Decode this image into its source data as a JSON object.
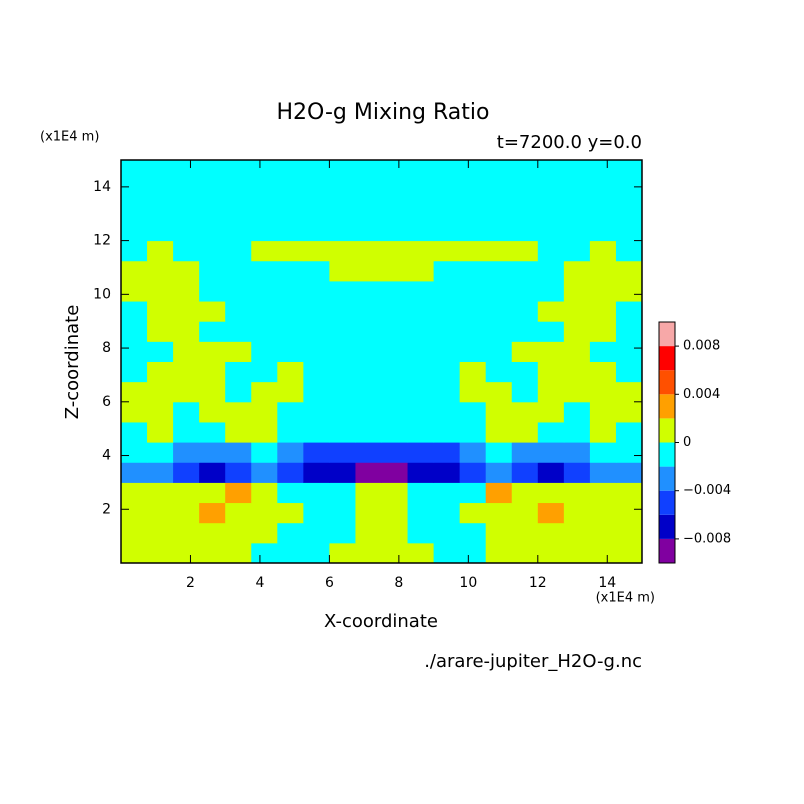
{
  "chart_data": {
    "type": "contour",
    "title": "H2O-g Mixing Ratio",
    "subtitle": "t=7200.0 y=0.0",
    "x_label": "X-coordinate",
    "y_label": "Z-coordinate",
    "x_unit": "(x1E4 m)",
    "y_unit": "(x1E4 m)",
    "footer": "./arare-jupiter_H2O-g.nc",
    "xlim": [
      0,
      15
    ],
    "ylim": [
      0,
      15
    ],
    "xticks": [
      2,
      4,
      6,
      8,
      10,
      12,
      14
    ],
    "yticks": [
      2,
      4,
      6,
      8,
      10,
      12,
      14
    ],
    "levels": [
      -0.01,
      -0.008,
      -0.006,
      -0.004,
      -0.002,
      0,
      0.002,
      0.004,
      0.006,
      0.008,
      0.01
    ],
    "colors": [
      "#8000a0",
      "#0000c8",
      "#1040ff",
      "#2090ff",
      "#00ffff",
      "#d0ff00",
      "#ffa000",
      "#ff5000",
      "#ff0000",
      "#f7a8a8"
    ],
    "colorbar_ticks": [
      {
        "value": -0.008,
        "label": "−0.008"
      },
      {
        "value": -0.004,
        "label": "−0.004"
      },
      0,
      0.004,
      0.008
    ],
    "x": [
      0.375,
      1.125,
      1.875,
      2.625,
      3.375,
      4.125,
      4.875,
      5.625,
      6.375,
      7.125,
      7.875,
      8.625,
      9.375,
      10.125,
      10.875,
      11.625,
      12.375,
      13.125,
      13.875,
      14.625
    ],
    "y": [
      0.375,
      1.125,
      1.875,
      2.625,
      3.375,
      4.125,
      4.875,
      5.625,
      6.375,
      7.125,
      7.875,
      8.625,
      9.375,
      10.125,
      10.875,
      11.625,
      12.375,
      13.125,
      13.875,
      14.625
    ],
    "z": [
      [
        0.001,
        0.001,
        0.001,
        0.001,
        0.001,
        -0.001,
        -0.001,
        -0.001,
        0.001,
        0.001,
        0.001,
        0.001,
        -0.001,
        -0.001,
        0.001,
        0.001,
        0.001,
        0.001,
        0.001,
        0.001
      ],
      [
        0.001,
        0.001,
        0.001,
        0.001,
        0.001,
        0.001,
        -0.001,
        -0.001,
        -0.001,
        0.001,
        0.001,
        -0.001,
        -0.001,
        -0.001,
        0.001,
        0.001,
        0.001,
        0.001,
        0.001,
        0.001
      ],
      [
        0.001,
        0.001,
        0.001,
        0.003,
        0.001,
        0.001,
        0.001,
        -0.001,
        -0.001,
        0.001,
        0.001,
        -0.001,
        -0.001,
        0.001,
        0.001,
        0.001,
        0.003,
        0.001,
        0.001,
        0.001
      ],
      [
        0.001,
        0.001,
        0.001,
        0.001,
        0.003,
        0.001,
        -0.001,
        -0.001,
        -0.001,
        0.001,
        0.001,
        -0.001,
        -0.001,
        -0.001,
        0.003,
        0.001,
        0.001,
        0.001,
        0.001,
        0.001
      ],
      [
        -0.003,
        -0.003,
        -0.005,
        -0.007,
        -0.005,
        -0.003,
        -0.005,
        -0.007,
        -0.007,
        -0.009,
        -0.009,
        -0.007,
        -0.007,
        -0.005,
        -0.003,
        -0.005,
        -0.007,
        -0.005,
        -0.003,
        -0.003
      ],
      [
        -0.001,
        -0.001,
        -0.003,
        -0.003,
        -0.003,
        -0.001,
        -0.003,
        -0.005,
        -0.005,
        -0.005,
        -0.005,
        -0.005,
        -0.005,
        -0.003,
        -0.001,
        -0.003,
        -0.003,
        -0.003,
        -0.001,
        -0.001
      ],
      [
        -0.001,
        0.001,
        -0.001,
        -0.001,
        0.001,
        0.001,
        -0.001,
        -0.001,
        -0.001,
        -0.001,
        -0.001,
        -0.001,
        -0.001,
        -0.001,
        0.001,
        0.001,
        -0.001,
        -0.001,
        0.001,
        -0.001
      ],
      [
        0.001,
        0.001,
        -0.001,
        0.001,
        0.001,
        0.001,
        -0.001,
        -0.001,
        -0.001,
        -0.001,
        -0.001,
        -0.001,
        -0.001,
        -0.001,
        0.001,
        0.001,
        0.001,
        -0.001,
        0.001,
        0.001
      ],
      [
        0.001,
        0.001,
        0.001,
        0.001,
        -0.001,
        0.001,
        0.001,
        -0.001,
        -0.001,
        -0.001,
        -0.001,
        -0.001,
        -0.001,
        0.001,
        0.001,
        -0.001,
        0.001,
        0.001,
        0.001,
        0.001
      ],
      [
        -0.001,
        0.001,
        0.001,
        0.001,
        -0.001,
        -0.001,
        0.001,
        -0.001,
        -0.001,
        -0.001,
        -0.001,
        -0.001,
        -0.001,
        0.001,
        -0.001,
        -0.001,
        0.001,
        0.001,
        0.001,
        -0.001
      ],
      [
        -0.001,
        -0.001,
        0.001,
        0.001,
        0.001,
        -0.001,
        -0.001,
        -0.001,
        -0.001,
        -0.001,
        -0.001,
        -0.001,
        -0.001,
        -0.001,
        -0.001,
        0.001,
        0.001,
        0.001,
        -0.001,
        -0.001
      ],
      [
        -0.001,
        0.001,
        0.001,
        -0.001,
        -0.001,
        -0.001,
        -0.001,
        -0.001,
        -0.001,
        -0.001,
        -0.001,
        -0.001,
        -0.001,
        -0.001,
        -0.001,
        -0.001,
        -0.001,
        0.001,
        0.001,
        -0.001
      ],
      [
        -0.001,
        0.001,
        0.001,
        0.001,
        -0.001,
        -0.001,
        -0.001,
        -0.001,
        -0.001,
        -0.001,
        -0.001,
        -0.001,
        -0.001,
        -0.001,
        -0.001,
        -0.001,
        0.001,
        0.001,
        0.001,
        -0.001
      ],
      [
        0.001,
        0.001,
        0.001,
        -0.001,
        -0.001,
        -0.001,
        -0.001,
        -0.001,
        -0.001,
        -0.001,
        -0.001,
        -0.001,
        -0.001,
        -0.001,
        -0.001,
        -0.001,
        -0.001,
        0.001,
        0.001,
        0.001
      ],
      [
        0.001,
        0.001,
        0.001,
        -0.001,
        -0.001,
        -0.001,
        -0.001,
        -0.001,
        0.001,
        0.001,
        0.001,
        0.001,
        -0.001,
        -0.001,
        -0.001,
        -0.001,
        -0.001,
        0.001,
        0.001,
        0.001
      ],
      [
        -0.001,
        0.001,
        -0.001,
        -0.001,
        -0.001,
        0.001,
        0.001,
        0.001,
        0.001,
        0.001,
        0.001,
        0.001,
        0.001,
        0.001,
        0.001,
        0.001,
        -0.001,
        -0.001,
        0.001,
        -0.001
      ],
      [
        -0.001,
        -0.001,
        -0.001,
        -0.001,
        -0.001,
        -0.001,
        -0.001,
        -0.001,
        -0.001,
        -0.001,
        -0.001,
        -0.001,
        -0.001,
        -0.001,
        -0.001,
        -0.001,
        -0.001,
        -0.001,
        -0.001,
        -0.001
      ],
      [
        -0.001,
        -0.001,
        -0.001,
        -0.001,
        -0.001,
        -0.001,
        -0.001,
        -0.001,
        -0.001,
        -0.001,
        -0.001,
        -0.001,
        -0.001,
        -0.001,
        -0.001,
        -0.001,
        -0.001,
        -0.001,
        -0.001,
        -0.001
      ],
      [
        -0.001,
        -0.001,
        -0.001,
        -0.001,
        -0.001,
        -0.001,
        -0.001,
        -0.001,
        -0.001,
        -0.001,
        -0.001,
        -0.001,
        -0.001,
        -0.001,
        -0.001,
        -0.001,
        -0.001,
        -0.001,
        -0.001,
        -0.001
      ],
      [
        -0.001,
        -0.001,
        -0.001,
        -0.001,
        -0.001,
        -0.001,
        -0.001,
        -0.001,
        -0.001,
        -0.001,
        -0.001,
        -0.001,
        -0.001,
        -0.001,
        -0.001,
        -0.001,
        -0.001,
        -0.001,
        -0.001,
        -0.001
      ]
    ]
  }
}
